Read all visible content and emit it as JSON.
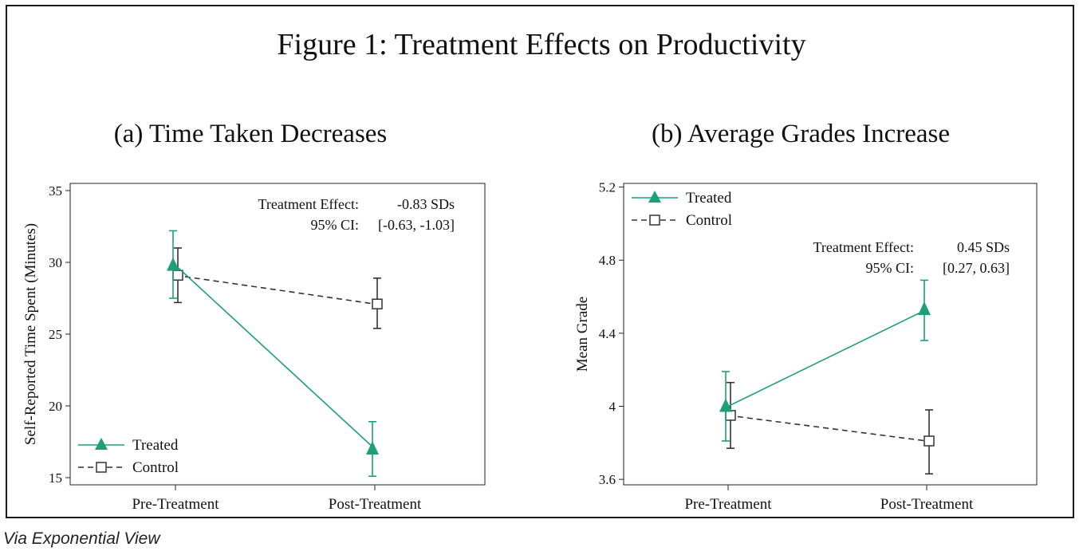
{
  "figure_title": "Figure 1: Treatment Effects on Productivity",
  "source_caption": "Via Exponential View",
  "colors": {
    "treated": "#1f9e7a",
    "control": "#333333",
    "frame": "#1a1a1a"
  },
  "chart_data": [
    {
      "type": "line",
      "title": "(a) Time Taken Decreases",
      "xlabel": "",
      "ylabel": "Self-Reported Time Spent (Minutes)",
      "categories": [
        "Pre-Treatment",
        "Post-Treatment"
      ],
      "ylim": [
        14.5,
        35.5
      ],
      "yticks": [
        15,
        20,
        25,
        30,
        35
      ],
      "ytick_labels": [
        "15",
        "20",
        "25",
        "30",
        "35"
      ],
      "legend_position": "bottom-left",
      "series": [
        {
          "name": "Treated",
          "marker": "filled-triangle",
          "line": "solid",
          "values": [
            29.8,
            17.0
          ],
          "ci_low": [
            27.5,
            15.1
          ],
          "ci_high": [
            32.2,
            18.9
          ]
        },
        {
          "name": "Control",
          "marker": "hollow-square",
          "line": "dashed",
          "values": [
            29.1,
            27.1
          ],
          "ci_low": [
            27.2,
            25.4
          ],
          "ci_high": [
            31.0,
            28.9
          ]
        }
      ],
      "annotation": {
        "label1": "Treatment Effect:",
        "value1": "-0.83 SDs",
        "label2": "95% CI:",
        "value2": "[-0.63, -1.03]"
      }
    },
    {
      "type": "line",
      "title": "(b) Average Grades Increase",
      "xlabel": "",
      "ylabel": "Mean Grade",
      "categories": [
        "Pre-Treatment",
        "Post-Treatment"
      ],
      "ylim": [
        3.57,
        5.22
      ],
      "yticks": [
        3.6,
        4.0,
        4.4,
        4.8,
        5.2
      ],
      "ytick_labels": [
        "3.6",
        "4",
        "4.4",
        "4.8",
        "5.2"
      ],
      "legend_position": "top-left",
      "series": [
        {
          "name": "Treated",
          "marker": "filled-triangle",
          "line": "solid",
          "values": [
            4.0,
            4.53
          ],
          "ci_low": [
            3.81,
            4.36
          ],
          "ci_high": [
            4.19,
            4.69
          ]
        },
        {
          "name": "Control",
          "marker": "hollow-square",
          "line": "dashed",
          "values": [
            3.95,
            3.81
          ],
          "ci_low": [
            3.77,
            3.63
          ],
          "ci_high": [
            4.13,
            3.98
          ]
        }
      ],
      "annotation": {
        "label1": "Treatment Effect:",
        "value1": "0.45 SDs",
        "label2": "95% CI:",
        "value2": "[0.27, 0.63]"
      }
    }
  ]
}
